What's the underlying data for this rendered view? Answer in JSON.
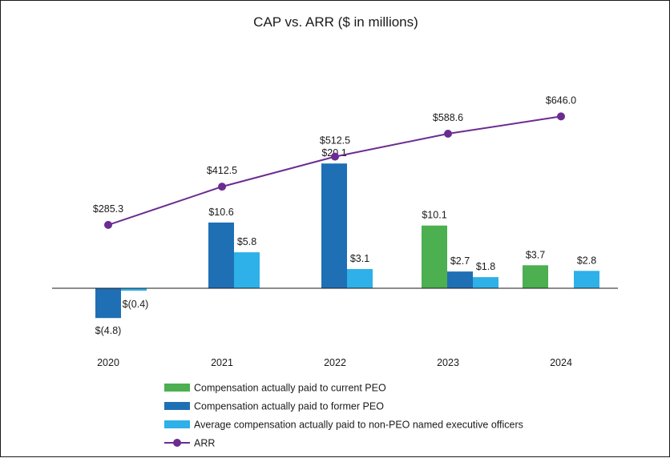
{
  "chart_data": {
    "type": "bar+line",
    "title": "CAP vs. ARR ($ in millions)",
    "categories": [
      "2020",
      "2021",
      "2022",
      "2023",
      "2024"
    ],
    "series": [
      {
        "name": "Compensation actually paid to current PEO",
        "type": "bar",
        "color": "#4caf50",
        "values": [
          null,
          null,
          null,
          10.1,
          3.7
        ],
        "labels": [
          "",
          "",
          "",
          "$10.1",
          "$3.7"
        ]
      },
      {
        "name": "Compensation actually paid to former PEO",
        "type": "bar",
        "color": "#1f6fb5",
        "values": [
          -4.8,
          10.6,
          20.1,
          2.7,
          null
        ],
        "labels": [
          "$(4.8)",
          "$10.6",
          "$20.1",
          "$2.7",
          ""
        ]
      },
      {
        "name": "Average compensation actually paid to non-PEO named executive officers",
        "type": "bar",
        "color": "#2eb0e8",
        "values": [
          -0.4,
          5.8,
          3.1,
          1.8,
          2.8
        ],
        "labels": [
          "$(0.4)",
          "$5.8",
          "$3.1",
          "$1.8",
          "$2.8"
        ]
      },
      {
        "name": "ARR",
        "type": "line",
        "color": "#6b2c91",
        "values": [
          285.3,
          412.5,
          512.5,
          588.6,
          646.0
        ],
        "labels": [
          "$285.3",
          "$412.5",
          "$512.5",
          "$588.6",
          "$646.0"
        ]
      }
    ],
    "legend_position": "bottom"
  }
}
